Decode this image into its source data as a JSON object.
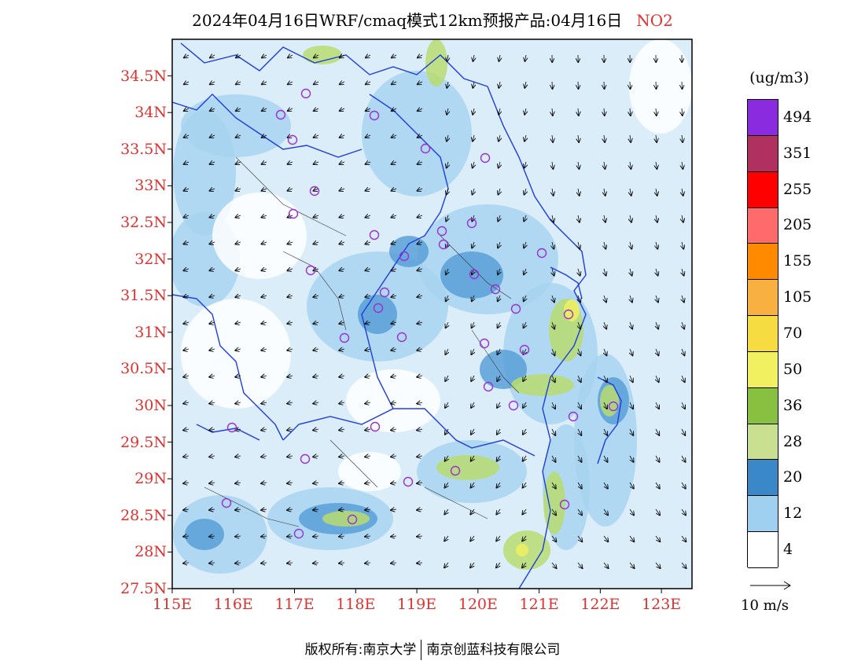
{
  "title": {
    "text": "2024年04月16日WRF/cmaq模式12km预报产品:04月16日",
    "species": "NO2"
  },
  "map": {
    "lat_labels": [
      "34.5N",
      "34N",
      "33.5N",
      "33N",
      "32.5N",
      "32N",
      "31.5N",
      "31N",
      "30.5N",
      "30N",
      "29.5N",
      "29N",
      "28.5N",
      "28N",
      "27.5N"
    ],
    "lon_labels": [
      "115E",
      "116E",
      "117E",
      "118E",
      "119E",
      "120E",
      "121E",
      "122E",
      "123E"
    ],
    "lon_range": [
      115,
      123.5
    ],
    "lat_range": [
      27.5,
      35.0
    ],
    "colors": {
      "axis_label": "#e03030",
      "boundary": "#1e3cdc",
      "station": "#9b30d0"
    }
  },
  "colorbar": {
    "unit": "(ug/m3)",
    "labels": [
      "494",
      "351",
      "255",
      "205",
      "155",
      "105",
      "70",
      "50",
      "36",
      "28",
      "20",
      "12",
      "4"
    ],
    "colors": [
      "#8b2be0",
      "#a030d0",
      "#b03060",
      "#d01078",
      "#ff0000",
      "#ff1a50",
      "#ff6a6a",
      "#f05a30",
      "#ff8a00",
      "#ffaa20",
      "#f8b040",
      "#ffee00",
      "#f6dc40",
      "#f0f060",
      "#6aa830",
      "#88c040",
      "#b8dc70",
      "#c8e090",
      "#dce8c0",
      "#3a88c8",
      "#60a8e0",
      "#a0d0f0",
      "#d8ecfa",
      "#ffffff"
    ]
  },
  "reference_vector": {
    "label": "10 m/s"
  },
  "footer": {
    "left": "版权所有:南京大学",
    "right": "南京创蓝科技有限公司"
  }
}
